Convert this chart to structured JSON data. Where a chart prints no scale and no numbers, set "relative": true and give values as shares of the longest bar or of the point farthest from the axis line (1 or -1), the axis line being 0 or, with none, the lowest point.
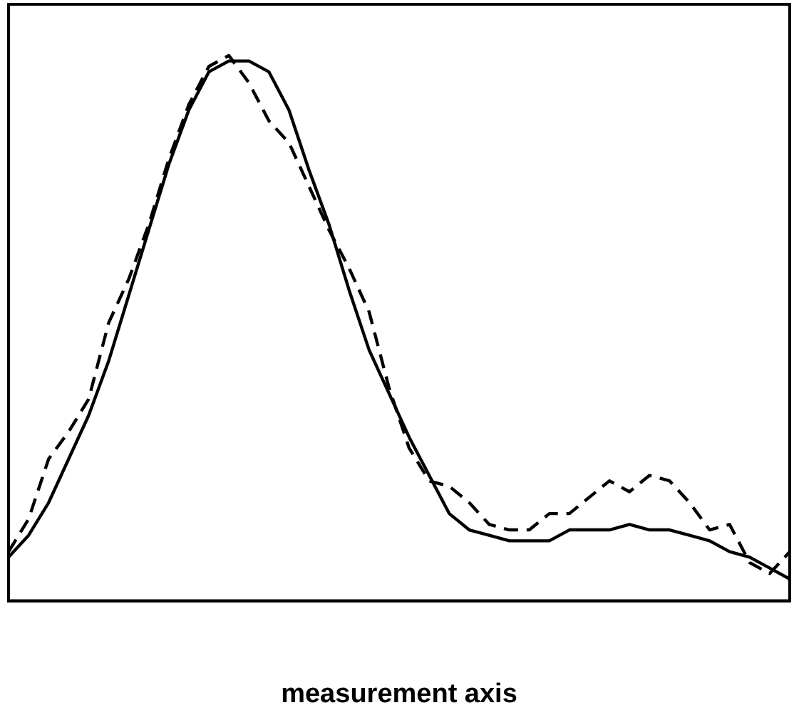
{
  "chart_data": {
    "type": "line",
    "xlabel": "measurement axis",
    "relative": true,
    "legend": false,
    "grid": false,
    "marker": "none",
    "categories": [
      null,
      null,
      null,
      null,
      null,
      null,
      null,
      null,
      null,
      null,
      null,
      null,
      null,
      null,
      null,
      null,
      null,
      null,
      null,
      null,
      null,
      null,
      null,
      null,
      null,
      null,
      null,
      null,
      null,
      null,
      null,
      null,
      null,
      null,
      null,
      null,
      null,
      null,
      null,
      null
    ],
    "series": [
      {
        "color": "#000000",
        "line_style": "solid",
        "values": [
          0.08,
          0.12,
          0.18,
          0.26,
          0.34,
          0.44,
          0.56,
          0.68,
          0.8,
          0.9,
          0.97,
          0.99,
          0.99,
          0.97,
          0.9,
          0.79,
          0.69,
          0.57,
          0.46,
          0.38,
          0.3,
          0.23,
          0.16,
          0.13,
          0.12,
          0.11,
          0.11,
          0.11,
          0.13,
          0.13,
          0.13,
          0.14,
          0.13,
          0.13,
          0.12,
          0.11,
          0.09,
          0.08,
          0.06,
          0.04
        ]
      },
      {
        "color": "#000000",
        "line_style": "dashed",
        "values": [
          0.09,
          0.15,
          0.26,
          0.31,
          0.37,
          0.51,
          0.59,
          0.69,
          0.81,
          0.91,
          0.98,
          1.0,
          0.95,
          0.88,
          0.84,
          0.76,
          0.68,
          0.61,
          0.53,
          0.39,
          0.28,
          0.22,
          0.21,
          0.18,
          0.14,
          0.13,
          0.13,
          0.16,
          0.16,
          0.19,
          0.22,
          0.2,
          0.23,
          0.22,
          0.18,
          0.13,
          0.14,
          0.07,
          0.05,
          0.09
        ]
      }
    ]
  }
}
